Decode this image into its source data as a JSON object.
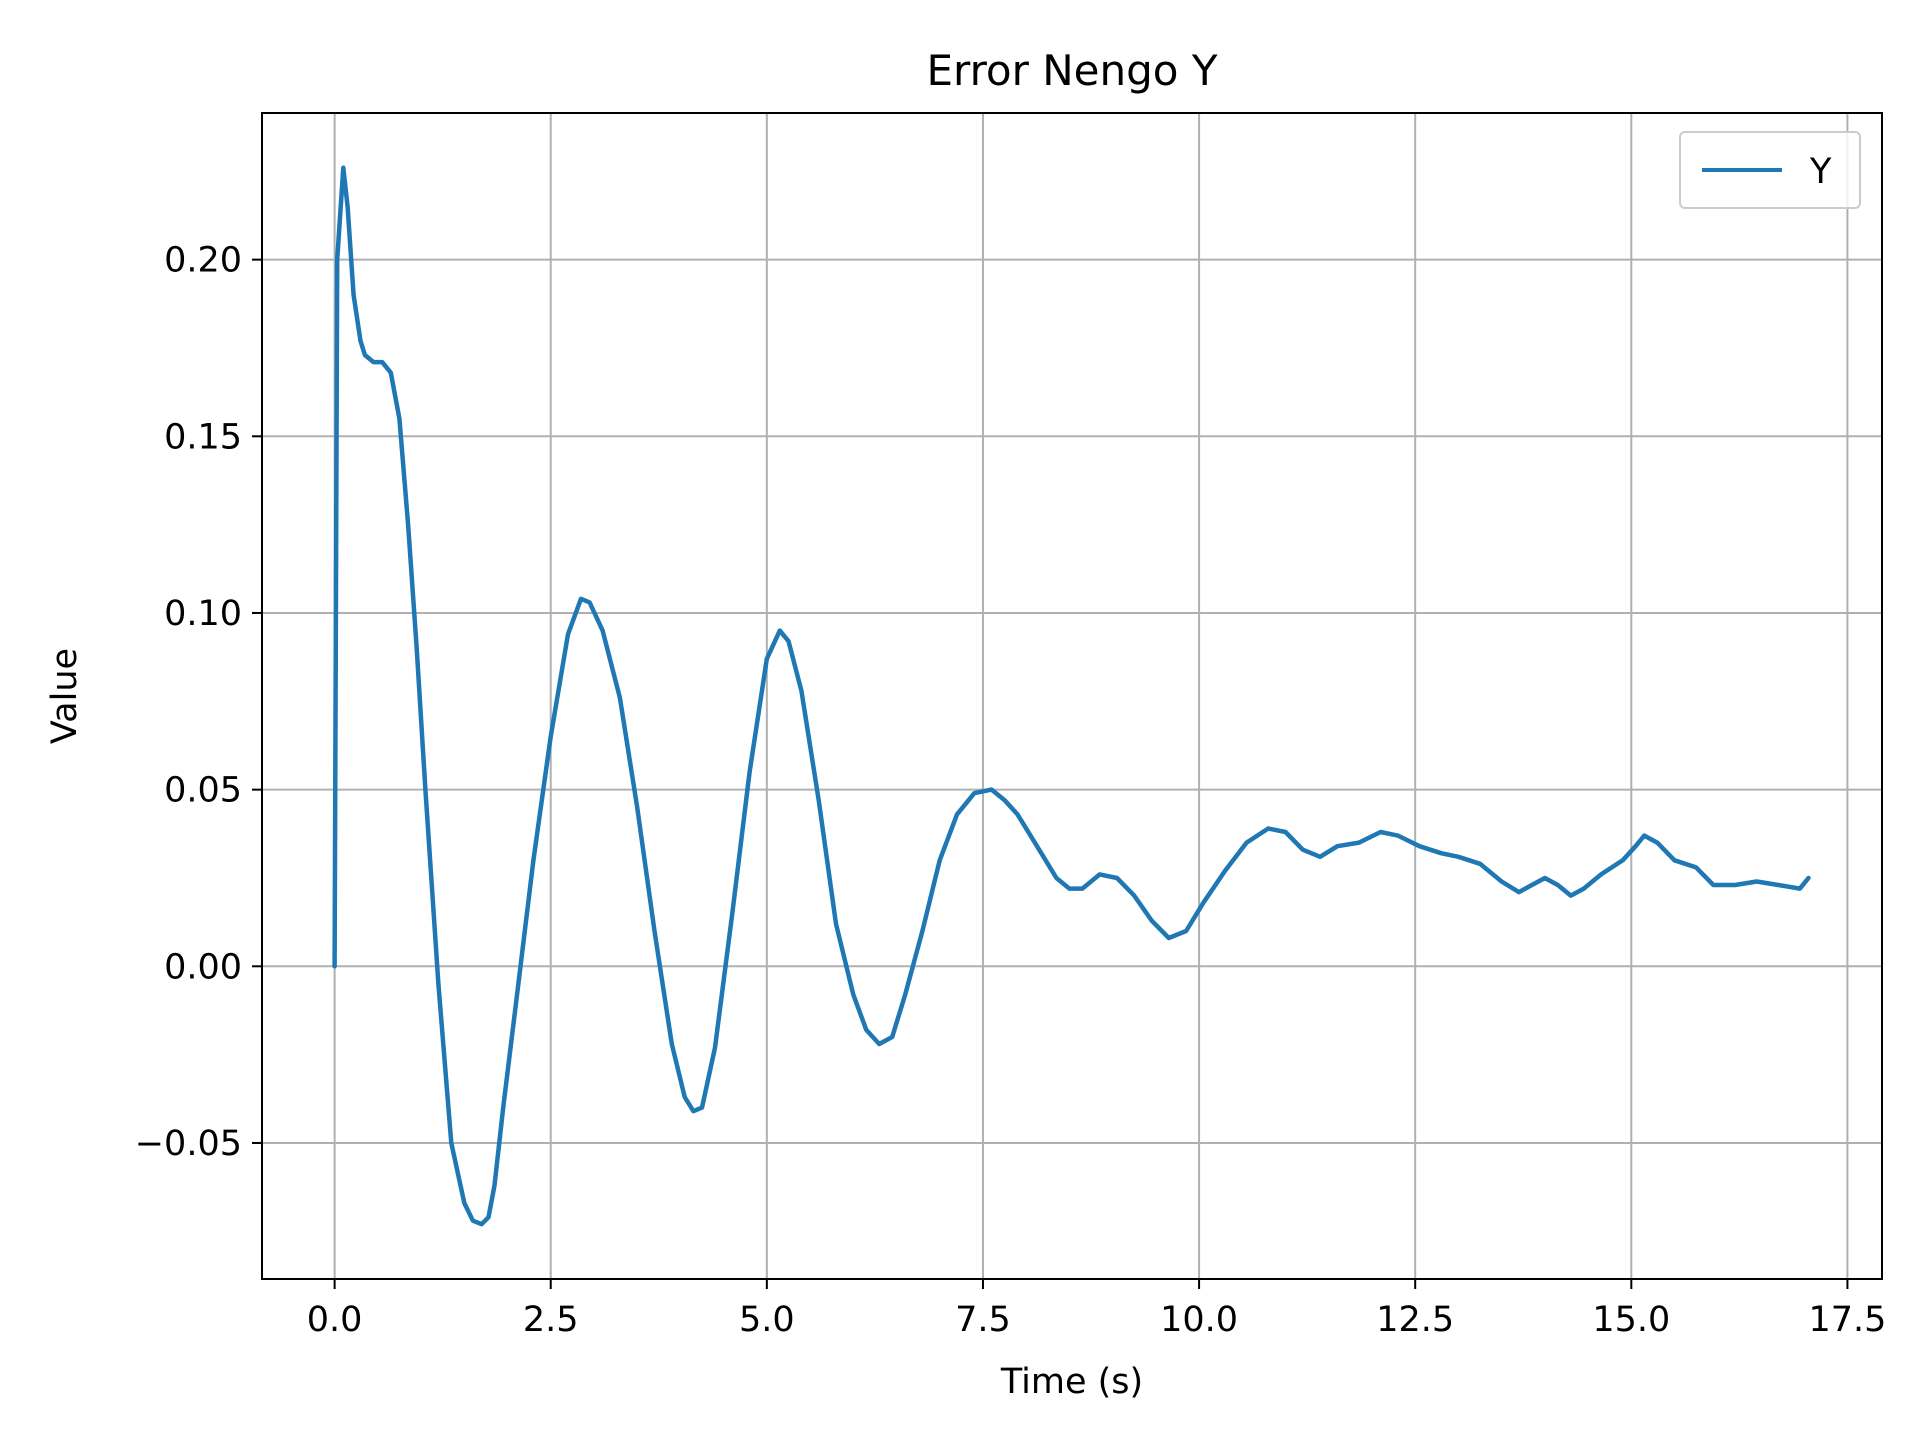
{
  "chart_data": {
    "type": "line",
    "title": "Error Nengo Y",
    "xlabel": "Time (s)",
    "ylabel": "Value",
    "xlim": [
      -0.84,
      17.9
    ],
    "ylim": [
      -0.0885,
      0.2415
    ],
    "xticks": [
      0.0,
      2.5,
      5.0,
      7.5,
      10.0,
      12.5,
      15.0,
      17.5
    ],
    "xtick_labels": [
      "0.0",
      "2.5",
      "5.0",
      "7.5",
      "10.0",
      "12.5",
      "15.0",
      "17.5"
    ],
    "yticks": [
      -0.05,
      0.0,
      0.05,
      0.1,
      0.15,
      0.2
    ],
    "ytick_labels": [
      "−0.05",
      "0.00",
      "0.05",
      "0.10",
      "0.15",
      "0.20"
    ],
    "grid": true,
    "legend_position": "top-right",
    "colors": {
      "series": "#1f77b4",
      "grid": "#b0b0b0",
      "axis": "#000000",
      "legend_border": "#cccccc"
    },
    "series": [
      {
        "name": "Y",
        "x": [
          0.0,
          0.03,
          0.1,
          0.15,
          0.22,
          0.3,
          0.35,
          0.45,
          0.55,
          0.65,
          0.75,
          0.85,
          0.95,
          1.05,
          1.2,
          1.35,
          1.5,
          1.6,
          1.7,
          1.78,
          1.85,
          1.95,
          2.1,
          2.3,
          2.5,
          2.7,
          2.85,
          2.95,
          3.1,
          3.3,
          3.5,
          3.7,
          3.9,
          4.05,
          4.15,
          4.25,
          4.4,
          4.6,
          4.8,
          5.0,
          5.15,
          5.25,
          5.4,
          5.6,
          5.8,
          6.0,
          6.15,
          6.3,
          6.45,
          6.6,
          6.8,
          7.0,
          7.2,
          7.4,
          7.6,
          7.75,
          7.9,
          8.05,
          8.2,
          8.35,
          8.5,
          8.65,
          8.85,
          9.05,
          9.25,
          9.45,
          9.65,
          9.85,
          10.05,
          10.3,
          10.55,
          10.8,
          11.0,
          11.2,
          11.4,
          11.6,
          11.85,
          12.1,
          12.3,
          12.55,
          12.8,
          13.0,
          13.25,
          13.5,
          13.7,
          13.85,
          14.0,
          14.15,
          14.3,
          14.45,
          14.65,
          14.9,
          15.05,
          15.15,
          15.3,
          15.5,
          15.75,
          15.95,
          16.2,
          16.45,
          16.7,
          16.95,
          17.05
        ],
        "y": [
          0.0,
          0.2,
          0.226,
          0.215,
          0.19,
          0.177,
          0.173,
          0.171,
          0.171,
          0.168,
          0.155,
          0.125,
          0.09,
          0.05,
          -0.005,
          -0.05,
          -0.067,
          -0.072,
          -0.073,
          -0.071,
          -0.062,
          -0.04,
          -0.01,
          0.03,
          0.065,
          0.094,
          0.104,
          0.103,
          0.095,
          0.076,
          0.045,
          0.01,
          -0.022,
          -0.037,
          -0.041,
          -0.04,
          -0.023,
          0.015,
          0.055,
          0.087,
          0.095,
          0.092,
          0.078,
          0.047,
          0.012,
          -0.008,
          -0.018,
          -0.022,
          -0.02,
          -0.008,
          0.01,
          0.03,
          0.043,
          0.049,
          0.05,
          0.047,
          0.043,
          0.037,
          0.031,
          0.025,
          0.022,
          0.022,
          0.026,
          0.025,
          0.02,
          0.013,
          0.008,
          0.01,
          0.018,
          0.027,
          0.035,
          0.039,
          0.038,
          0.033,
          0.031,
          0.034,
          0.035,
          0.038,
          0.037,
          0.034,
          0.032,
          0.031,
          0.029,
          0.024,
          0.021,
          0.023,
          0.025,
          0.023,
          0.02,
          0.022,
          0.026,
          0.03,
          0.034,
          0.037,
          0.035,
          0.03,
          0.028,
          0.023,
          0.023,
          0.024,
          0.023,
          0.022,
          0.025
        ]
      }
    ]
  }
}
